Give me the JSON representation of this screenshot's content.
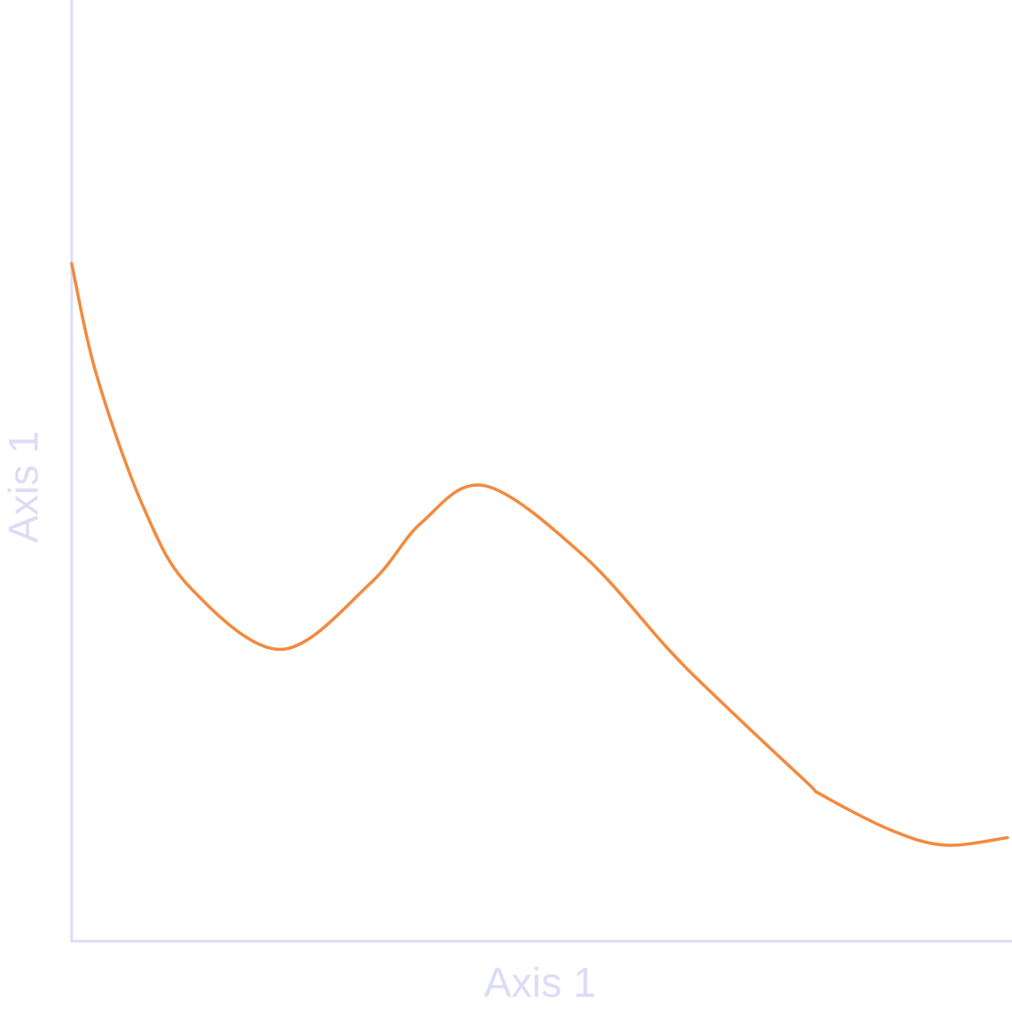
{
  "chart_data": {
    "type": "line",
    "xlabel": "Axis 1",
    "ylabel": "Axis 1",
    "xlim": [
      0,
      1
    ],
    "ylim": [
      0,
      1
    ],
    "grid": false,
    "legend": "none",
    "series": [
      {
        "color": "#F28A3F",
        "x": [
          0.0,
          0.027,
          0.077,
          0.127,
          0.223,
          0.318,
          0.373,
          0.44,
          0.545,
          0.636,
          0.684,
          0.782,
          0.8,
          0.873,
          0.931,
          0.997
        ],
        "y": [
          0.72,
          0.6,
          0.46,
          0.375,
          0.31,
          0.38,
          0.445,
          0.484,
          0.41,
          0.31,
          0.262,
          0.17,
          0.155,
          0.118,
          0.102,
          0.11
        ]
      }
    ],
    "colors": {
      "axis": "#DCDCF7",
      "label": "#DCDCF7",
      "background": "#FFFFFF"
    }
  }
}
